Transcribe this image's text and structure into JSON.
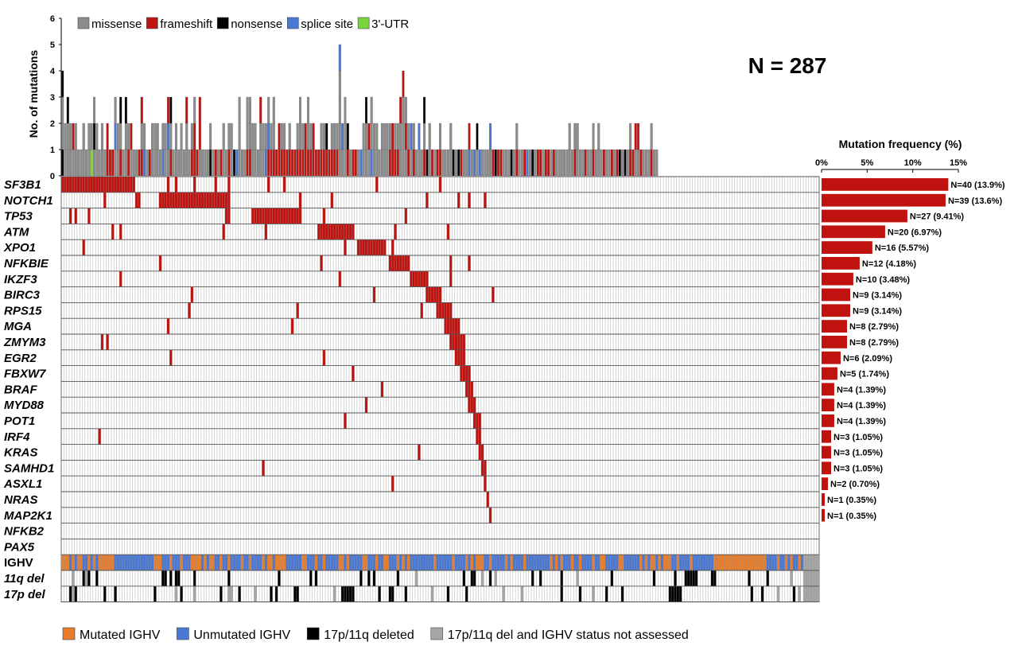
{
  "title": "N = 287",
  "chart_data": {
    "type": "heatmap",
    "n_patients": 287,
    "top_histogram": {
      "ylabel": "No. of mutations",
      "ylim": [
        0,
        6
      ],
      "ticks": [
        "0",
        "1",
        "2",
        "3",
        "4",
        "5",
        "6"
      ],
      "note": "Stacked count of mutations per patient, coloured by mutation type"
    },
    "mutation_types": [
      {
        "name": "missense",
        "color": "#8c8c8c"
      },
      {
        "name": "frameshift",
        "color": "#c0130f"
      },
      {
        "name": "nonsense",
        "color": "#000000"
      },
      {
        "name": "splice site",
        "color": "#4a78d2"
      },
      {
        "name": "3'-UTR",
        "color": "#7ad63a"
      }
    ],
    "genes": [
      {
        "gene": "SF3B1",
        "count": 40,
        "pct": 13.9,
        "label": "N=40 (13.9%)",
        "start": 0
      },
      {
        "gene": "NOTCH1",
        "count": 39,
        "pct": 13.6,
        "label": "N=39 (13.6%)",
        "start": 37
      },
      {
        "gene": "TP53",
        "count": 27,
        "pct": 9.41,
        "label": "N=27 (9.41%)",
        "start": 72
      },
      {
        "gene": "ATM",
        "count": 20,
        "pct": 6.97,
        "label": "N=20 (6.97%)",
        "start": 97
      },
      {
        "gene": "XPO1",
        "count": 16,
        "pct": 5.57,
        "label": "N=16 (5.57%)",
        "start": 112
      },
      {
        "gene": "NFKBIE",
        "count": 12,
        "pct": 4.18,
        "label": "N=12 (4.18%)",
        "start": 124
      },
      {
        "gene": "IKZF3",
        "count": 10,
        "pct": 3.48,
        "label": "N=10 (3.48%)",
        "start": 132
      },
      {
        "gene": "BIRC3",
        "count": 9,
        "pct": 3.14,
        "label": "N=9 (3.14%)",
        "start": 138
      },
      {
        "gene": "RPS15",
        "count": 9,
        "pct": 3.14,
        "label": "N=9 (3.14%)",
        "start": 142
      },
      {
        "gene": "MGA",
        "count": 8,
        "pct": 2.79,
        "label": "N=8 (2.79%)",
        "start": 145
      },
      {
        "gene": "ZMYM3",
        "count": 8,
        "pct": 2.79,
        "label": "N=8 (2.79%)",
        "start": 147
      },
      {
        "gene": "EGR2",
        "count": 6,
        "pct": 2.09,
        "label": "N=6 (2.09%)",
        "start": 149
      },
      {
        "gene": "FBXW7",
        "count": 5,
        "pct": 1.74,
        "label": "N=5 (1.74%)",
        "start": 151
      },
      {
        "gene": "BRAF",
        "count": 4,
        "pct": 1.39,
        "label": "N=4 (1.39%)",
        "start": 153
      },
      {
        "gene": "MYD88",
        "count": 4,
        "pct": 1.39,
        "label": "N=4 (1.39%)",
        "start": 154
      },
      {
        "gene": "POT1",
        "count": 4,
        "pct": 1.39,
        "label": "N=4 (1.39%)",
        "start": 156
      },
      {
        "gene": "IRF4",
        "count": 3,
        "pct": 1.05,
        "label": "N=3 (1.05%)",
        "start": 157
      },
      {
        "gene": "KRAS",
        "count": 3,
        "pct": 1.05,
        "label": "N=3 (1.05%)",
        "start": 158
      },
      {
        "gene": "SAMHD1",
        "count": 3,
        "pct": 1.05,
        "label": "N=3 (1.05%)",
        "start": 159
      },
      {
        "gene": "ASXL1",
        "count": 2,
        "pct": 0.7,
        "label": "N=2 (0.70%)",
        "start": 160
      },
      {
        "gene": "NRAS",
        "count": 1,
        "pct": 0.35,
        "label": "N=1 (0.35%)",
        "start": 161
      },
      {
        "gene": "MAP2K1",
        "count": 1,
        "pct": 0.35,
        "label": "N=1 (0.35%)",
        "start": 162
      },
      {
        "gene": "NFKB2",
        "count": 0,
        "pct": 0,
        "label": "",
        "start": 163
      },
      {
        "gene": "PAX5",
        "count": 0,
        "pct": 0,
        "label": "",
        "start": 163
      }
    ],
    "annotation_rows": [
      "IGHV",
      "11q del",
      "17p del"
    ],
    "frequency_axis": {
      "title": "Mutation frequency (%)",
      "ticks": [
        "0%",
        "5%",
        "10%",
        "15%"
      ],
      "xlim": [
        0,
        15
      ]
    },
    "status_legend": [
      {
        "name": "Mutated IGHV",
        "color": "#e67e2e"
      },
      {
        "name": "Unmutated IGHV",
        "color": "#4a78d2"
      },
      {
        "name": "17p/11q deleted",
        "color": "#000000"
      },
      {
        "name": "17p/11q del and IGHV status not assessed",
        "color": "#a6a6a6"
      }
    ],
    "heatmap_colors": {
      "mutated": "#c0130f",
      "wildtype": "#ffffff",
      "grid": "#7f7f7f"
    }
  }
}
